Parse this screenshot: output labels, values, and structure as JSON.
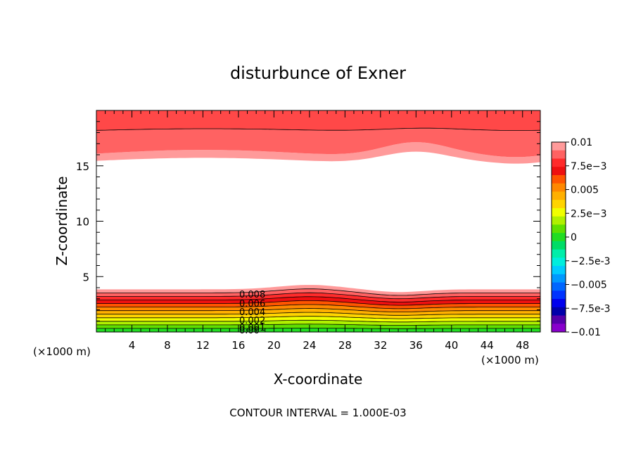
{
  "chart_data": {
    "type": "contour",
    "title": "disturbunce of Exner",
    "xlabel": "X-coordinate",
    "ylabel": "Z-coordinate",
    "x_units": "(×1000 m)",
    "x_units_right": "(×1000 m)",
    "xlim": [
      0,
      50
    ],
    "ylim": [
      0,
      20
    ],
    "x_ticks": [
      4,
      8,
      12,
      16,
      20,
      24,
      28,
      32,
      36,
      40,
      44,
      48
    ],
    "y_ticks": [
      5,
      10,
      15
    ],
    "footer": "CONTOUR INTERVAL = 1.000E-03",
    "colorbar": {
      "labels": [
        "0.01",
        "7.5e-3",
        "0.005",
        "2.5e-3",
        "0",
        "-2.5e-3",
        "-0.005",
        "-7.5e-3",
        "-0.01"
      ],
      "colors_top_to_bottom": [
        "#ff9a9a",
        "#ff6262",
        "#ff2b2b",
        "#ee1010",
        "#ff5500",
        "#ff8800",
        "#ffb000",
        "#ffd400",
        "#f0ff00",
        "#b0f000",
        "#60e000",
        "#22dd22",
        "#00dd66",
        "#00eeaa",
        "#00eedd",
        "#00ccff",
        "#0099ff",
        "#0066ff",
        "#0033ff",
        "#0000ee",
        "#0000aa",
        "#5500aa",
        "#8800cc"
      ]
    },
    "contour_labels": [
      "0.008",
      "0.006",
      "0.004",
      "0.002",
      "0.001",
      "0.00"
    ],
    "regions": {
      "upper_band_range": [
        15.2,
        20
      ],
      "lower_band_range": [
        0,
        4.2
      ]
    }
  }
}
